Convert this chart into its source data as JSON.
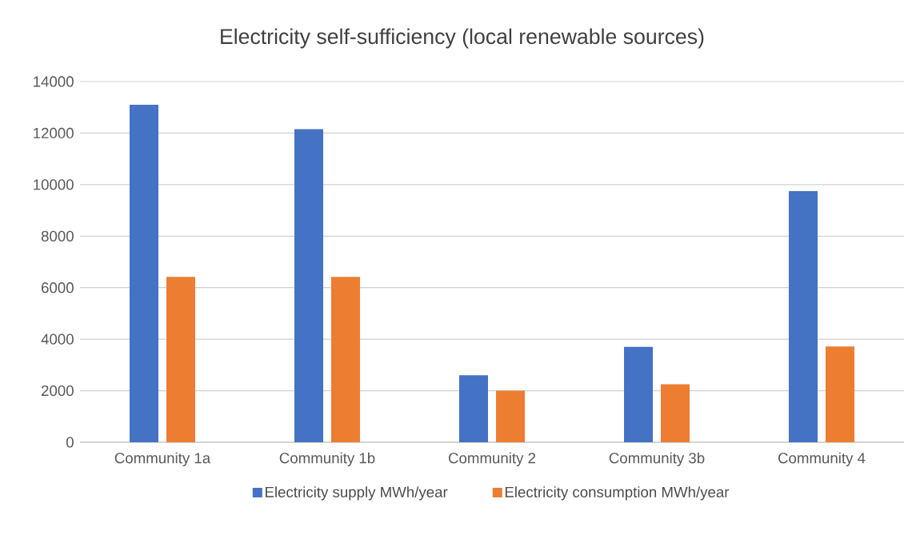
{
  "chart_data": {
    "type": "bar",
    "title": "Electricity self-sufficiency (local renewable sources)",
    "categories": [
      "Community 1a",
      "Community 1b",
      "Community 2",
      "Community 3b",
      "Community 4"
    ],
    "series": [
      {
        "name": "Electricity supply MWh/year",
        "color": "#4472c4",
        "values": [
          13100,
          12150,
          2600,
          3700,
          9750
        ]
      },
      {
        "name": "Electricity consumption MWh/year",
        "color": "#ed7d31",
        "values": [
          6420,
          6420,
          2000,
          2250,
          3720
        ]
      }
    ],
    "ylim": [
      0,
      14000
    ],
    "yticks": [
      0,
      2000,
      4000,
      6000,
      8000,
      10000,
      12000,
      14000
    ],
    "grid": "y",
    "legend": "bottom"
  }
}
